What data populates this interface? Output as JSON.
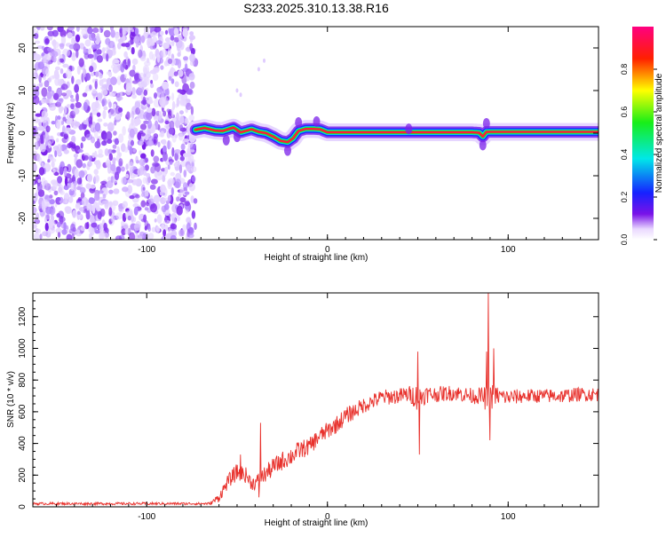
{
  "title": "S233.2025.310.13.38.R16",
  "chart_data": [
    {
      "type": "heatmap",
      "name": "spectrogram",
      "xlabel": "Height of straight line (km)",
      "ylabel": "Frequency (Hz)",
      "xlim": [
        -163,
        150
      ],
      "ylim": [
        -25,
        25
      ],
      "xticks": [
        -100,
        0,
        100
      ],
      "yticks": [
        -20,
        -10,
        0,
        10,
        20
      ],
      "noise_region_x": [
        -163,
        -73
      ],
      "signal_start_x": -73,
      "signal_trace": {
        "x": [
          -73,
          -68,
          -62,
          -58,
          -52,
          -48,
          -42,
          -38,
          -34,
          -30,
          -26,
          -22,
          -19,
          -16,
          -12,
          -8,
          -4,
          0,
          10,
          20,
          40,
          60,
          80,
          84,
          86,
          88,
          92,
          100,
          120,
          150
        ],
        "freq": [
          0.8,
          1.2,
          0.6,
          0.5,
          1.3,
          0.2,
          0.9,
          0.3,
          0.0,
          -0.8,
          -1.8,
          -2.1,
          -1.2,
          0.5,
          1.0,
          1.0,
          0.9,
          0.2,
          0.2,
          0.2,
          0.2,
          0.2,
          0.2,
          0.1,
          -0.8,
          0.3,
          0.3,
          0.3,
          0.3,
          0.3
        ]
      },
      "colorbar": {
        "label": "Normalized spectral amplitude",
        "range": [
          0,
          1
        ],
        "ticks": [
          0.0,
          0.2,
          0.4,
          0.6,
          0.8
        ],
        "tick_labels": [
          "0.0",
          "0.2",
          "0.4",
          "0.6",
          "0.8"
        ]
      }
    },
    {
      "type": "line",
      "name": "snr",
      "xlabel": "Height of straight line (km)",
      "ylabel": "SNR (10 * v/v)",
      "xlim": [
        -163,
        150
      ],
      "ylim": [
        0,
        1350
      ],
      "xticks": [
        -100,
        0,
        100
      ],
      "yticks": [
        0,
        200,
        400,
        600,
        800,
        1000,
        1200
      ],
      "color": "#e8312c",
      "series": [
        {
          "name": "SNR",
          "x": [
            -163,
            -140,
            -120,
            -100,
            -80,
            -70,
            -65,
            -60,
            -55,
            -50,
            -45,
            -42,
            -40,
            -38,
            -35,
            -30,
            -25,
            -20,
            -15,
            -10,
            -5,
            0,
            5,
            10,
            20,
            30,
            40,
            45,
            48,
            50,
            52,
            55,
            60,
            70,
            80,
            85,
            88,
            90,
            92,
            95,
            100,
            110,
            120,
            130,
            140,
            150
          ],
          "mean": [
            20,
            20,
            20,
            20,
            20,
            20,
            20,
            60,
            160,
            220,
            200,
            150,
            150,
            170,
            200,
            250,
            290,
            320,
            360,
            380,
            440,
            480,
            520,
            570,
            640,
            690,
            700,
            710,
            700,
            690,
            700,
            710,
            710,
            720,
            700,
            700,
            680,
            700,
            700,
            700,
            690,
            700,
            700,
            700,
            710,
            710
          ],
          "noise": [
            8,
            8,
            8,
            8,
            8,
            8,
            8,
            30,
            45,
            55,
            50,
            45,
            45,
            50,
            55,
            60,
            60,
            60,
            60,
            55,
            55,
            55,
            55,
            55,
            50,
            50,
            50,
            55,
            70,
            90,
            70,
            55,
            50,
            50,
            50,
            55,
            80,
            90,
            80,
            55,
            50,
            45,
            45,
            45,
            45,
            45
          ],
          "spikes": [
            {
              "x": -37,
              "y": 530
            },
            {
              "x": -38,
              "y": 60
            },
            {
              "x": -48,
              "y": 330
            },
            {
              "x": 50,
              "y": 980
            },
            {
              "x": 51,
              "y": 330
            },
            {
              "x": 88,
              "y": 980
            },
            {
              "x": 89,
              "y": 1350
            },
            {
              "x": 90,
              "y": 420
            },
            {
              "x": 92,
              "y": 1000
            }
          ]
        }
      ]
    }
  ]
}
